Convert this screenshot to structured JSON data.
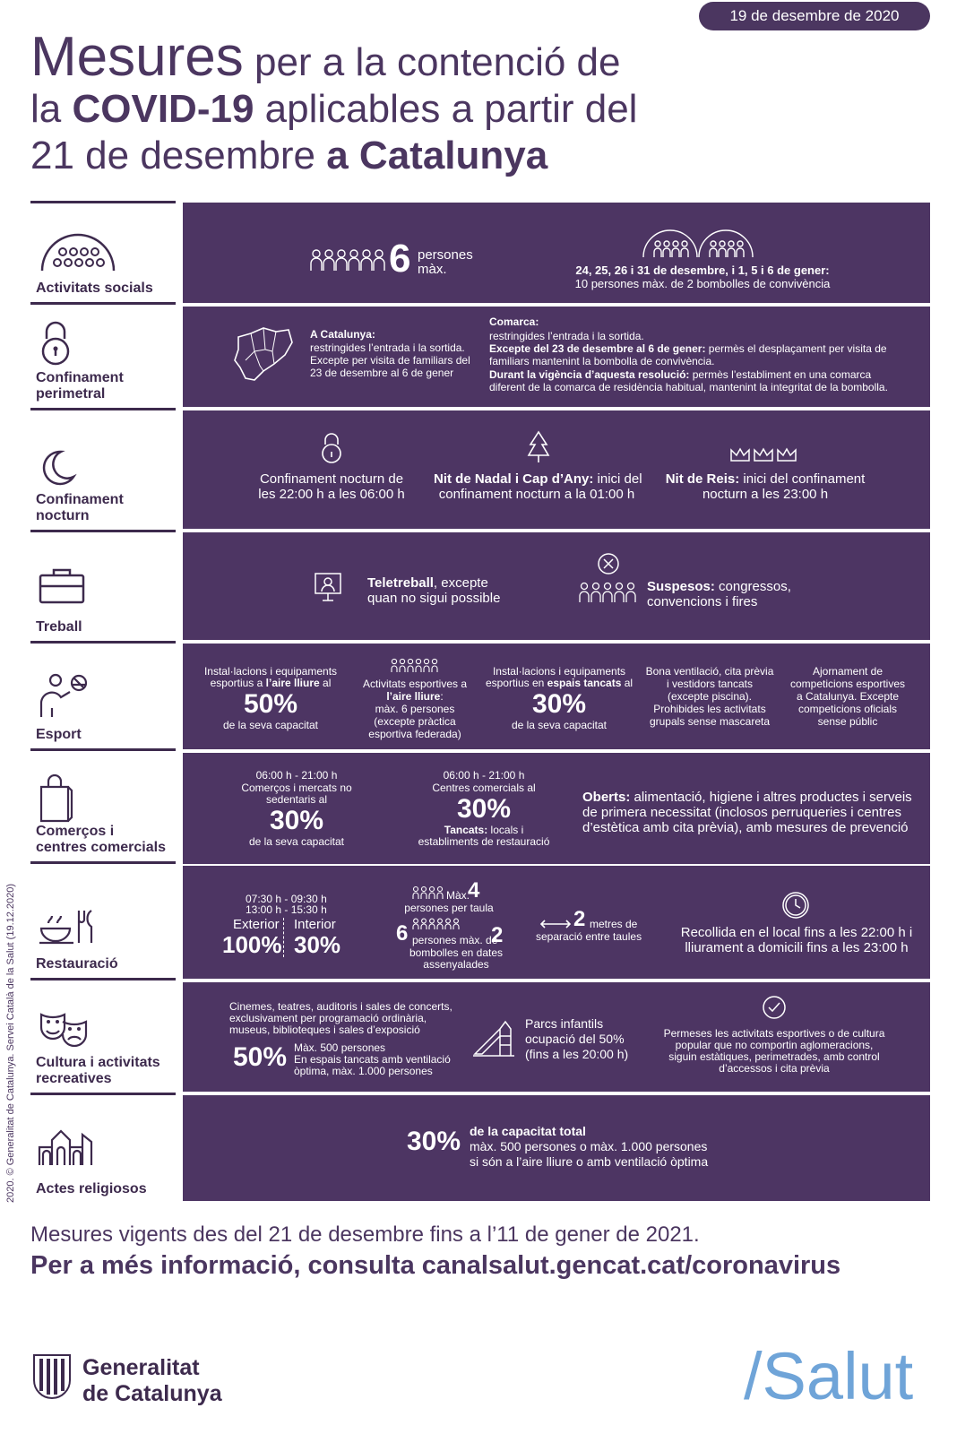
{
  "date": "19 de desembre de 2020",
  "title": {
    "p1": "Mesures",
    "p2": " per a la contenció de",
    "p3": "la ",
    "p4": "COVID-19",
    "p5": " aplicables a partir del",
    "p6": "21 de desembre ",
    "p7": "a Catalunya"
  },
  "copyright": "2020. © Generalitat de Catalunya. Servei Català de la Salut (19.12.2020)",
  "rows": {
    "social": {
      "label": "Activitats socials",
      "num": "6",
      "num_text1": "persones",
      "num_text2": "màx.",
      "right1": "24, 25, 26 i 31 de desembre, i 1, 5 i 6 de gener:",
      "right2": "10 persones màx. de 2 bombolles de convivència"
    },
    "perimetral": {
      "label1": "Confinament",
      "label2": "perimetral",
      "cat_title": "A Catalunya:",
      "cat_l1": "restringides l’entrada i la sortida.",
      "cat_l2": "Excepte per visita de familiars del",
      "cat_l3": "23 de desembre al 6 de gener",
      "com_title": "Comarca:",
      "com_l1": "restringides l’entrada i la sortida.",
      "com_b1": "Excepte del 23 de desembre al 6 de gener:",
      "com_l2": " permès el desplaçament per visita de",
      "com_l3": "familiars mantenint la bombolla de convivència.",
      "com_b2": "Durant la vigència d’aquesta resolució:",
      "com_l4": " permès l’establiment en una comarca",
      "com_l5": "diferent de la comarca de residència habitual, mantenint la integritat de la bombolla."
    },
    "nocturn": {
      "label1": "Confinament",
      "label2": "nocturn",
      "a1": "Confinament nocturn de",
      "a2": "les 22:00 h a les 06:00 h",
      "b_bold": "Nit de Nadal i Cap d’Any:",
      "b1": " inici del",
      "b2": "confinament nocturn a la 01:00 h",
      "c_bold": "Nit de Reis:",
      "c1": " inici del confinament",
      "c2": "nocturn a les 23:00 h"
    },
    "treball": {
      "label": "Treball",
      "a_bold": "Teletreball",
      "a1": ", excepte",
      "a2": "quan no sigui possible",
      "b_bold": "Suspesos:",
      "b1": " congressos,",
      "b2": "convencions i fires"
    },
    "esport": {
      "label": "Esport",
      "a1": "Instal·lacions i equipaments",
      "a2": "esportius a ",
      "a2b": "l’aire lliure",
      "a2c": " al",
      "a_pct": "50%",
      "a3": "de la seva capacitat",
      "b1": "Activitats esportives a",
      "b2": "l’aire lliure",
      "b2c": ":",
      "b3": "màx. 6 persones",
      "b4": "(excepte pràctica",
      "b5": "esportiva federada)",
      "c1": "Instal·lacions i equipaments",
      "c2": "esportius en ",
      "c2b": "espais tancats",
      "c2c": " al",
      "c_pct": "30%",
      "c3": "de la seva capacitat",
      "d1": "Bona ventilació, cita prèvia",
      "d2": "i vestidors tancats",
      "d3": "(excepte piscina).",
      "d4": "Prohibides les activitats",
      "d5": "grupals sense mascareta",
      "e1": "Ajornament de",
      "e2": "competicions esportives",
      "e3": "a Catalunya. Excepte",
      "e4": "competicions oficials",
      "e5": "sense públic"
    },
    "comercos": {
      "label1": "Comerços i",
      "label2": "centres comercials",
      "a_time": "06:00 h - 21:00 h",
      "a1": "Comerços i mercats no",
      "a2": "sedentaris al",
      "a_pct": "30%",
      "a3": "de la seva capacitat",
      "b_time": "06:00 h - 21:00 h",
      "b1": "Centres comercials al",
      "b_pct": "30%",
      "b_bold": "Tancats:",
      "b2": " locals i",
      "b3": "establiments de restauració",
      "c_bold": "Oberts:",
      "c1": " alimentació, higiene i altres productes i serveis",
      "c2": "de primera necessitat (inclosos perruqueries i centres",
      "c3": "d’estètica amb cita prèvia), amb mesures de prevenció"
    },
    "restauracio": {
      "label": "Restauració",
      "t1": "07:30 h - 09:30 h",
      "t2": "13:00 h - 15:30 h",
      "ext": "Exterior",
      "int": "Interior",
      "ext_pct": "100%",
      "int_pct": "30%",
      "max_txt": "Màx.",
      "max_num": "4",
      "max_sub": "persones per taula",
      "six": "6",
      "six_txt": "persones màx. de",
      "two": "2",
      "six_sub1": "bombolles en dates",
      "six_sub2": "assenyalades",
      "dist_num": "2",
      "dist1": "metres de",
      "dist2": "separació entre taules",
      "rec1": "Recollida en el local fins a les 22:00 h i",
      "rec2": "lliurament a domicili fins a les 23:00 h"
    },
    "cultura": {
      "label1": "Cultura i activitats",
      "label2": "recreatives",
      "a1": "Cinemes, teatres, auditoris i sales de concerts,",
      "a2": "exclusivament per programació ordinària,",
      "a3": "museus, biblioteques i sales d’exposició",
      "a_pct": "50%",
      "a4": "Màx. 500 persones",
      "a5": "En espais tancats amb ventilació",
      "a6": "òptima, màx. 1.000 persones",
      "b1": "Parcs infantils",
      "b2": "ocupació del 50%",
      "b3": "(fins a les 20:00 h)",
      "c1": "Permeses les activitats esportives o de cultura",
      "c2": "popular que no comportin aglomeracions,",
      "c3": "siguin estàtiques, perimetrades, amb control",
      "c4": "d’accessos i cita prèvia"
    },
    "religiosos": {
      "label": "Actes religiosos",
      "pct": "30%",
      "b": "de la capacitat total",
      "l1": "màx. 500 persones o màx. 1.000 persones",
      "l2": "si són a l’aire lliure o amb ventilació òptima"
    }
  },
  "footer": {
    "line1": "Mesures vigents des del 21 de desembre fins a l’11 de gener de 2021.",
    "line2": "Per a més informació, consulta canalsalut.gencat.cat/coronavirus"
  },
  "brand": {
    "gen1": "Generalitat",
    "gen2": "de Catalunya",
    "salut": "/Salut"
  }
}
